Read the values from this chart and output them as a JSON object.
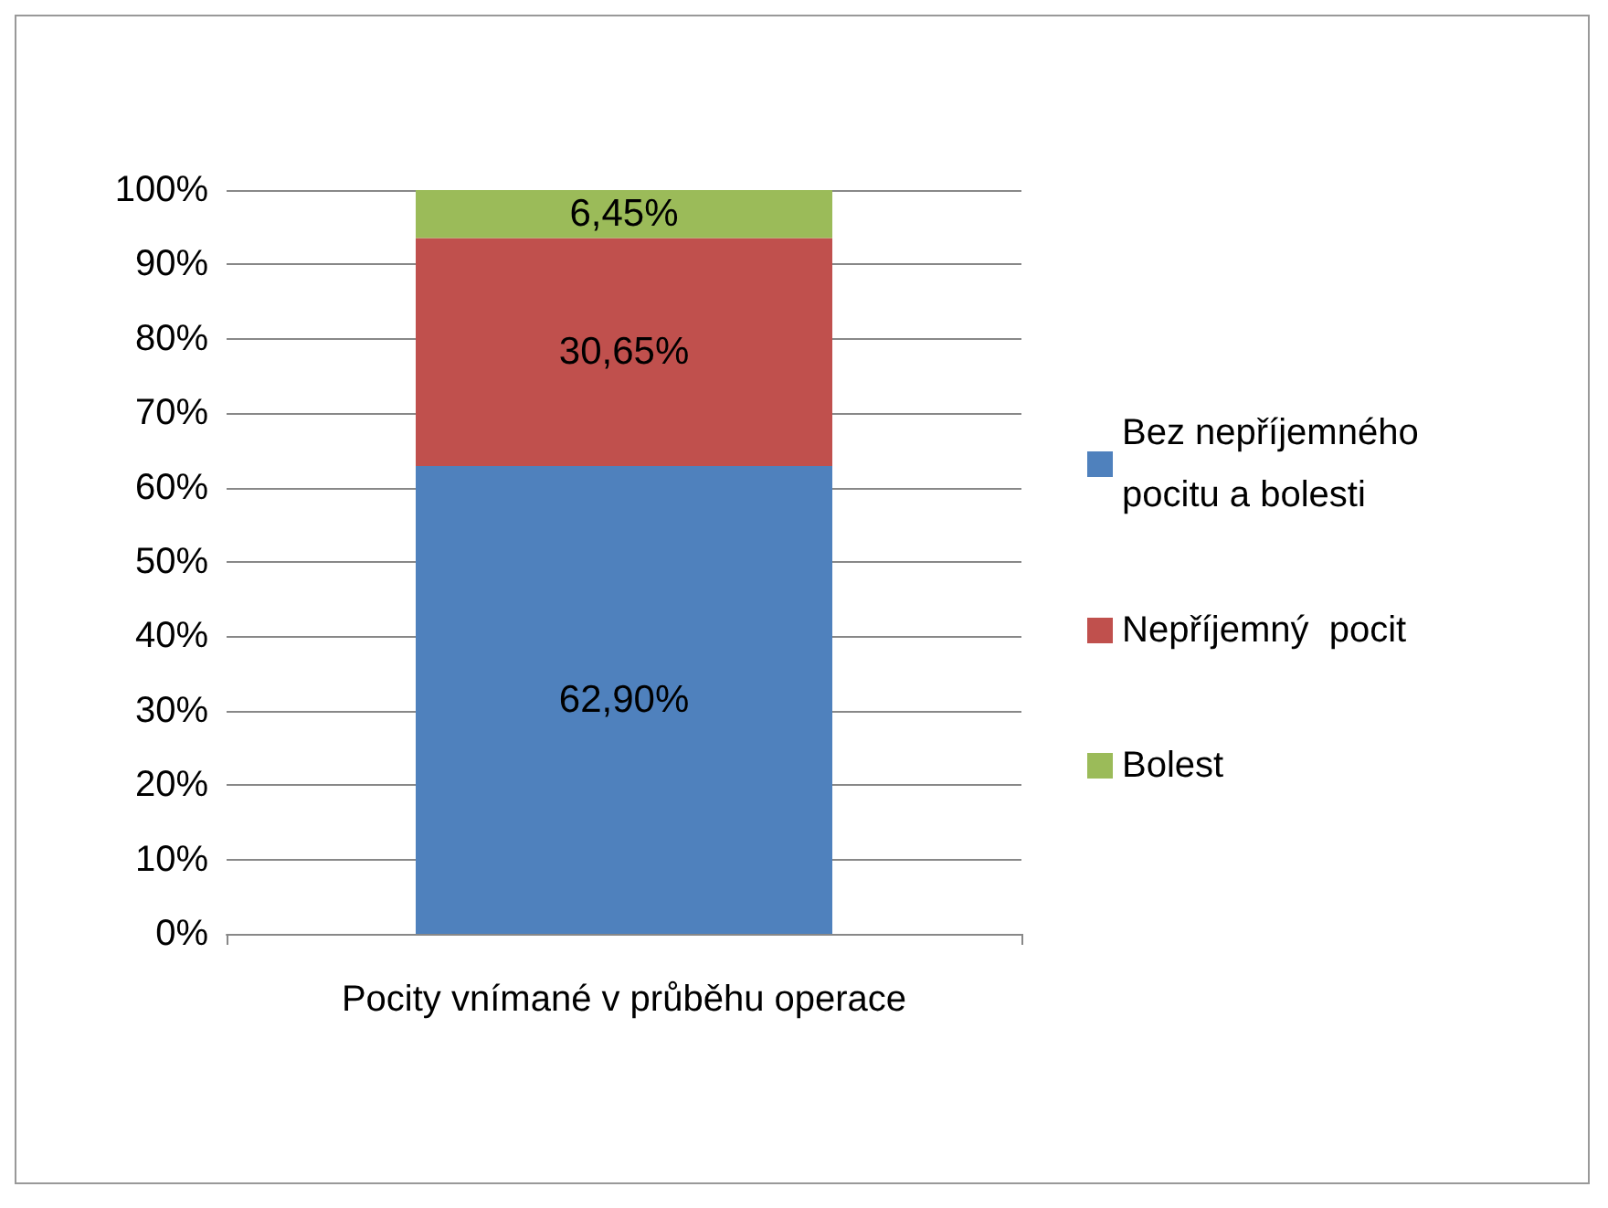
{
  "chart_data": {
    "type": "bar",
    "stacked": true,
    "categories": [
      "Pocity vnímané v průběhu operace"
    ],
    "series": [
      {
        "name": "Bez nepříjemného pocitu a bolesti",
        "color": "#4f81bd",
        "values": [
          62.9
        ],
        "value_labels": [
          "62,90%"
        ]
      },
      {
        "name": "Nepříjemný  pocit",
        "color": "#c0504d",
        "values": [
          30.65
        ],
        "value_labels": [
          "30,65%"
        ]
      },
      {
        "name": "Bolest",
        "color": "#9bbb59",
        "values": [
          6.45
        ],
        "value_labels": [
          "6,45%"
        ]
      }
    ],
    "ylim": [
      0,
      100
    ],
    "yticks": [
      {
        "value": 0,
        "label": "0%"
      },
      {
        "value": 10,
        "label": "10%"
      },
      {
        "value": 20,
        "label": "20%"
      },
      {
        "value": 30,
        "label": "30%"
      },
      {
        "value": 40,
        "label": "40%"
      },
      {
        "value": 50,
        "label": "50%"
      },
      {
        "value": 60,
        "label": "60%"
      },
      {
        "value": 70,
        "label": "70%"
      },
      {
        "value": 80,
        "label": "80%"
      },
      {
        "value": 90,
        "label": "90%"
      },
      {
        "value": 100,
        "label": "100%"
      }
    ],
    "grid": "y",
    "legend": "right"
  }
}
